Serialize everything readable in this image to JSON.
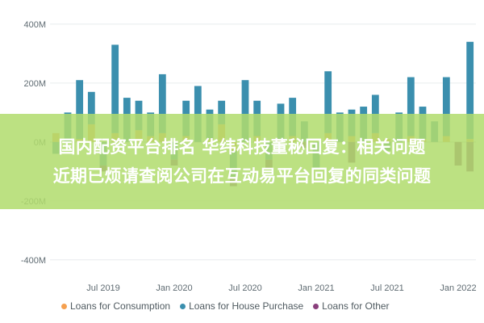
{
  "chart_data": {
    "type": "bar",
    "stacked": true,
    "ylim": [
      -450,
      460
    ],
    "y_ticks": [
      {
        "value": 400,
        "label": "400M"
      },
      {
        "value": 200,
        "label": "200M"
      },
      {
        "value": 0,
        "label": "0M"
      },
      {
        "value": -200,
        "label": "-200M"
      },
      {
        "value": -400,
        "label": "-400M"
      }
    ],
    "x_ticks": [
      {
        "index": 4,
        "label": "Jul 2019"
      },
      {
        "index": 10,
        "label": "Jan 2020"
      },
      {
        "index": 16,
        "label": "Jul 2020"
      },
      {
        "index": 22,
        "label": "Jan 2021"
      },
      {
        "index": 28,
        "label": "Jul 2021"
      },
      {
        "index": 34,
        "label": "Jan 2022"
      }
    ],
    "categories": [
      "2019-03",
      "2019-04",
      "2019-05",
      "2019-06",
      "2019-07",
      "2019-08",
      "2019-09",
      "2019-10",
      "2019-11",
      "2019-12",
      "2020-01",
      "2020-02",
      "2020-03",
      "2020-04",
      "2020-05",
      "2020-06",
      "2020-07",
      "2020-08",
      "2020-09",
      "2020-10",
      "2020-11",
      "2020-12",
      "2021-01",
      "2021-02",
      "2021-03",
      "2021-04",
      "2021-05",
      "2021-06",
      "2021-07",
      "2021-08",
      "2021-09",
      "2021-10",
      "2021-11",
      "2021-12",
      "2022-01",
      "2022-02"
    ],
    "series": [
      {
        "name": "Loans for Consumption",
        "color": "#f5a04f",
        "values": [
          30,
          0,
          10,
          60,
          0,
          30,
          0,
          40,
          20,
          30,
          0,
          20,
          0,
          10,
          60,
          -30,
          0,
          20,
          0,
          10,
          20,
          0,
          0,
          30,
          0,
          20,
          0,
          30,
          10,
          0,
          20,
          10,
          0,
          20,
          0,
          10
        ]
      },
      {
        "name": "Loans for House Purchase",
        "color": "#3b8fae",
        "values": [
          -40,
          100,
          200,
          110,
          -80,
          300,
          150,
          100,
          80,
          200,
          -60,
          120,
          190,
          100,
          80,
          -90,
          210,
          120,
          -60,
          120,
          130,
          70,
          -90,
          210,
          100,
          90,
          120,
          130,
          -30,
          100,
          200,
          110,
          70,
          200,
          0,
          330
        ]
      },
      {
        "name": "Loans for Other",
        "color": "#8a3f7c",
        "values": [
          0,
          0,
          0,
          0,
          -20,
          0,
          0,
          0,
          0,
          0,
          -20,
          0,
          0,
          0,
          0,
          -30,
          0,
          0,
          -30,
          0,
          0,
          -20,
          0,
          0,
          0,
          -70,
          0,
          0,
          0,
          0,
          0,
          0,
          0,
          0,
          -80,
          -100
        ]
      }
    ]
  },
  "legend_items": [
    {
      "label": "Loans for Consumption",
      "color": "#f5a04f"
    },
    {
      "label": "Loans for House Purchase",
      "color": "#3b8fae"
    },
    {
      "label": "Loans for Other",
      "color": "#8a3f7c"
    }
  ],
  "overlay": {
    "line1": "国内配资平台排名 华纬科技董秘回复：相关问题",
    "line2": "近期已烦请查阅公司在互动易平台回复的同类问题"
  }
}
